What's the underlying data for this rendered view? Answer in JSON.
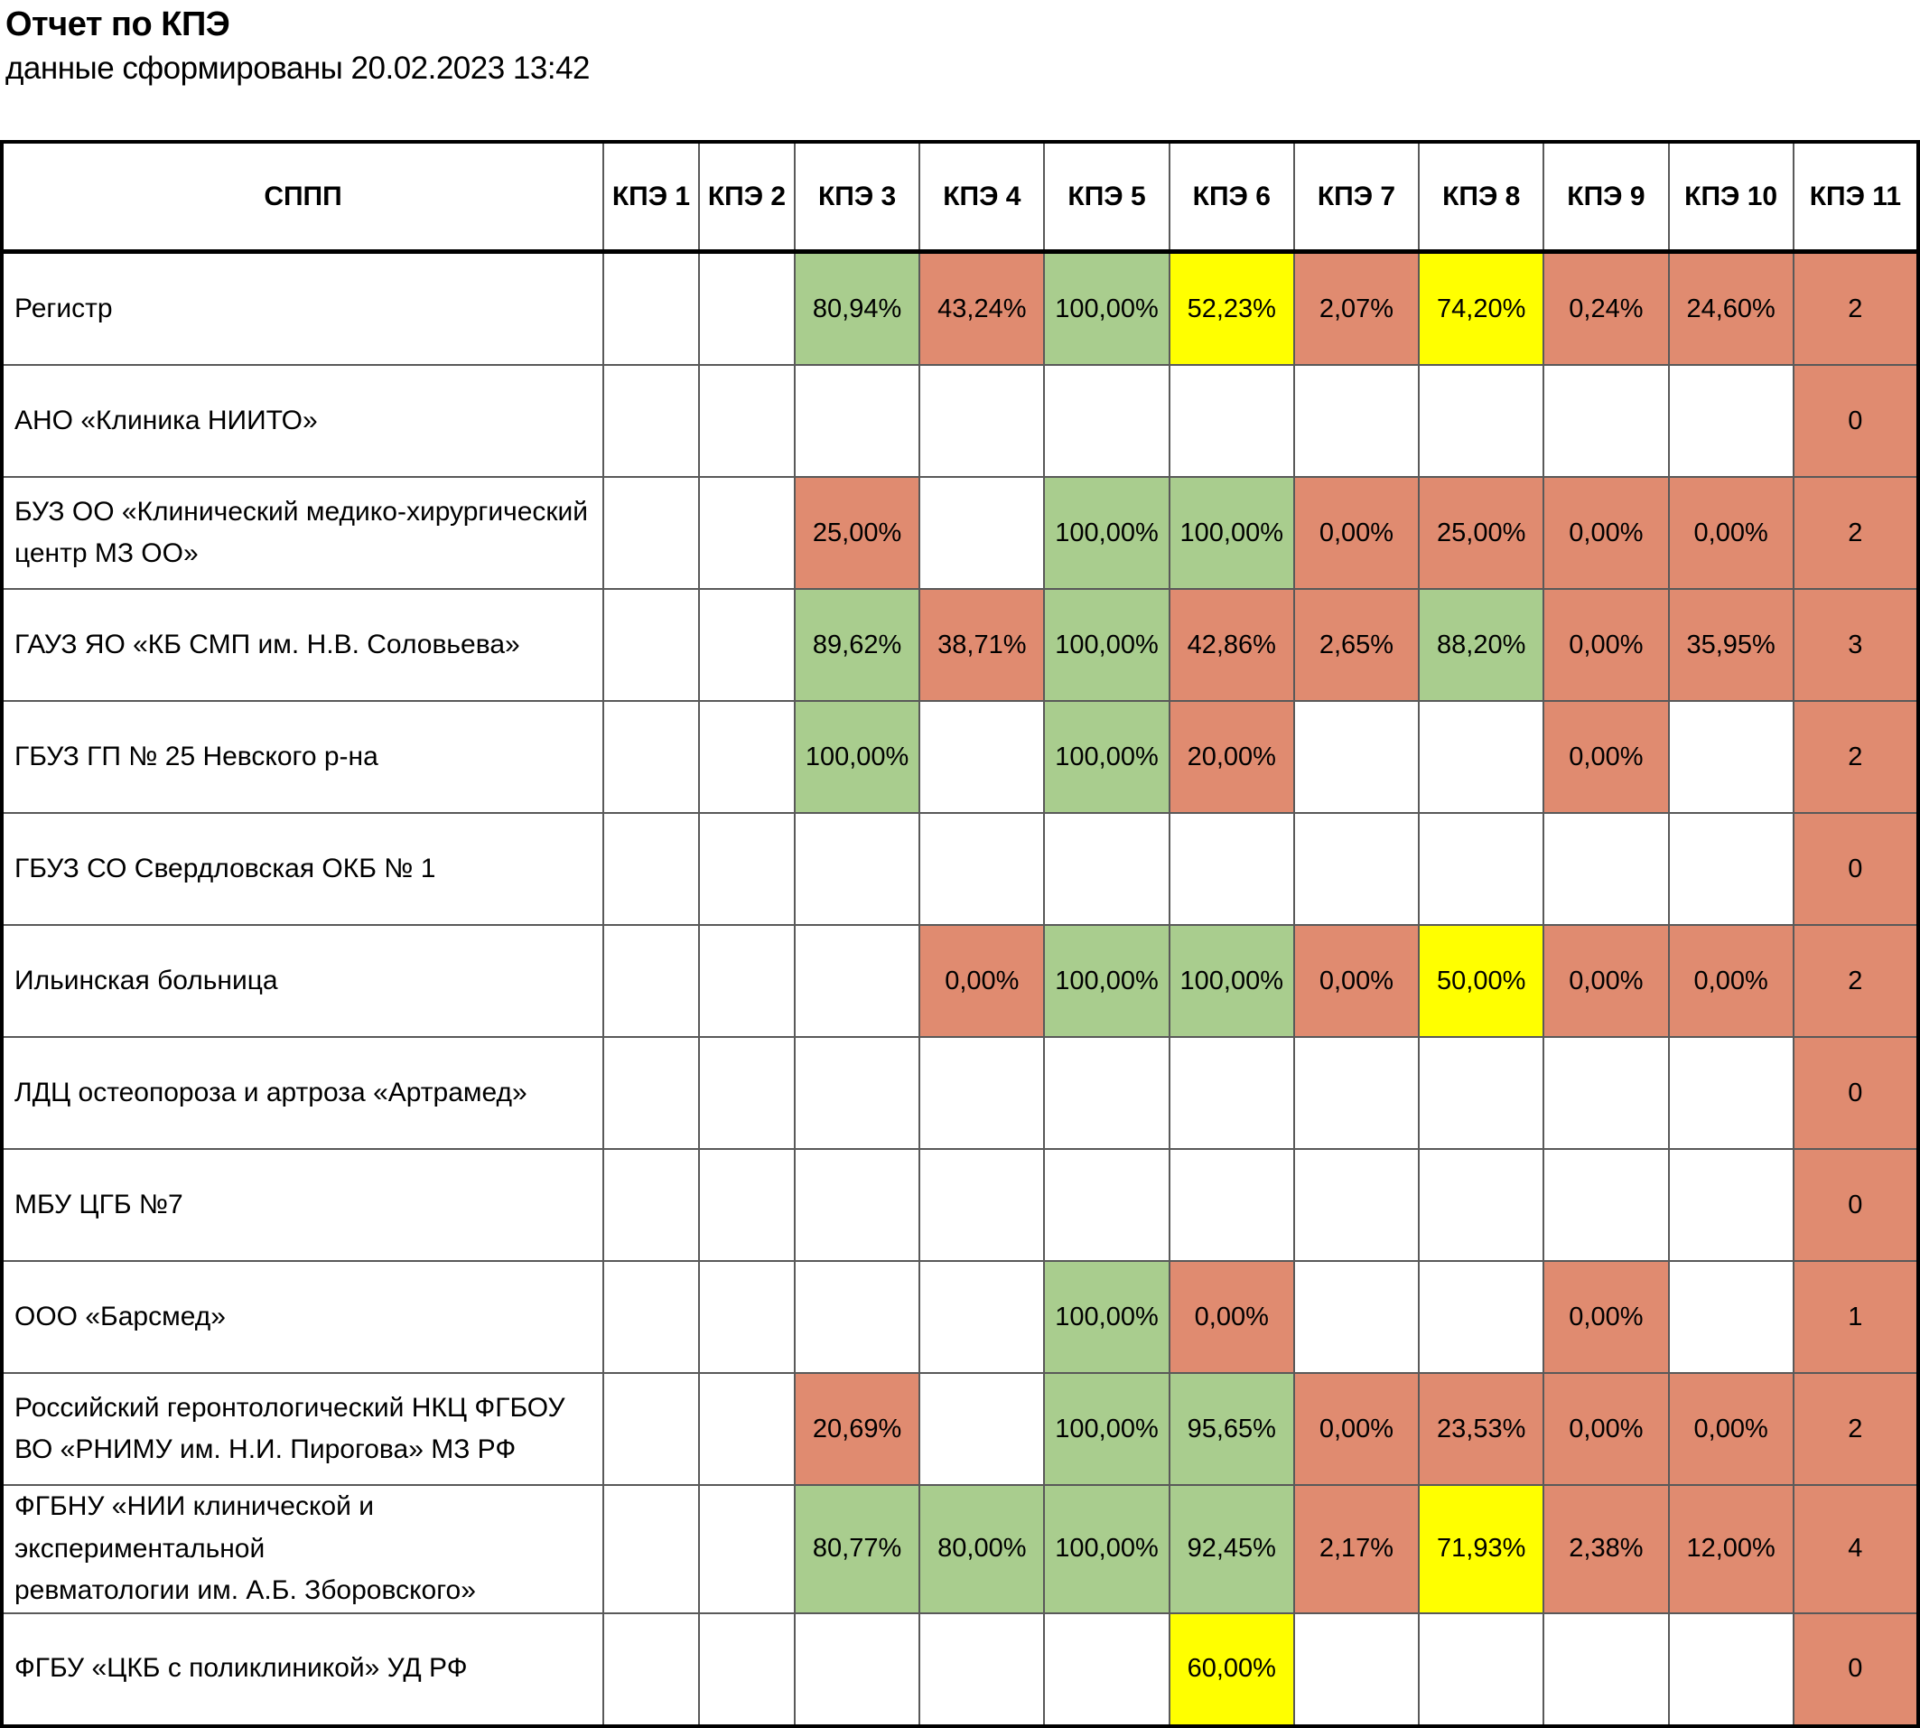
{
  "page": {
    "title": "Отчет по КПЭ",
    "subtitle": "данные сформированы 20.02.2023 13:42"
  },
  "colors": {
    "green": "#a9cd8e",
    "red": "#e08b70",
    "yellow": "#ffff00"
  },
  "chart_data": {
    "type": "table",
    "title": "Отчет по КПЭ",
    "subtitle": "данные сформированы 20.02.2023 13:42",
    "legend_note": "cell colors: green = good, yellow = medium, red = bad",
    "columns": [
      "СППП",
      "КПЭ 1",
      "КПЭ 2",
      "КПЭ 3",
      "КПЭ 4",
      "КПЭ 5",
      "КПЭ 6",
      "КПЭ 7",
      "КПЭ 8",
      "КПЭ 9",
      "КПЭ 10",
      "КПЭ 11"
    ],
    "rows": [
      {
        "name": "Регистр",
        "cells": [
          null,
          null,
          {
            "v": "80,94%",
            "c": "green"
          },
          {
            "v": "43,24%",
            "c": "red"
          },
          {
            "v": "100,00%",
            "c": "green"
          },
          {
            "v": "52,23%",
            "c": "yellow"
          },
          {
            "v": "2,07%",
            "c": "red"
          },
          {
            "v": "74,20%",
            "c": "yellow"
          },
          {
            "v": "0,24%",
            "c": "red"
          },
          {
            "v": "24,60%",
            "c": "red"
          },
          {
            "v": "2",
            "c": "red"
          }
        ]
      },
      {
        "name": "АНО «Клиника НИИТО»",
        "cells": [
          null,
          null,
          null,
          null,
          null,
          null,
          null,
          null,
          null,
          null,
          {
            "v": "0",
            "c": "red"
          }
        ]
      },
      {
        "name": "БУЗ ОО «Клинический медико-хирургический\nцентр МЗ ОО»",
        "cells": [
          null,
          null,
          {
            "v": "25,00%",
            "c": "red"
          },
          null,
          {
            "v": "100,00%",
            "c": "green"
          },
          {
            "v": "100,00%",
            "c": "green"
          },
          {
            "v": "0,00%",
            "c": "red"
          },
          {
            "v": "25,00%",
            "c": "red"
          },
          {
            "v": "0,00%",
            "c": "red"
          },
          {
            "v": "0,00%",
            "c": "red"
          },
          {
            "v": "2",
            "c": "red"
          }
        ]
      },
      {
        "name": "ГАУЗ ЯО «КБ СМП им. Н.В. Соловьева»",
        "cells": [
          null,
          null,
          {
            "v": "89,62%",
            "c": "green"
          },
          {
            "v": "38,71%",
            "c": "red"
          },
          {
            "v": "100,00%",
            "c": "green"
          },
          {
            "v": "42,86%",
            "c": "red"
          },
          {
            "v": "2,65%",
            "c": "red"
          },
          {
            "v": "88,20%",
            "c": "green"
          },
          {
            "v": "0,00%",
            "c": "red"
          },
          {
            "v": "35,95%",
            "c": "red"
          },
          {
            "v": "3",
            "c": "red"
          }
        ]
      },
      {
        "name": "ГБУЗ ГП № 25 Невского р-на",
        "cells": [
          null,
          null,
          {
            "v": "100,00%",
            "c": "green"
          },
          null,
          {
            "v": "100,00%",
            "c": "green"
          },
          {
            "v": "20,00%",
            "c": "red"
          },
          null,
          null,
          {
            "v": "0,00%",
            "c": "red"
          },
          null,
          {
            "v": "2",
            "c": "red"
          }
        ]
      },
      {
        "name": "ГБУЗ СО Свердловская ОКБ № 1",
        "cells": [
          null,
          null,
          null,
          null,
          null,
          null,
          null,
          null,
          null,
          null,
          {
            "v": "0",
            "c": "red"
          }
        ]
      },
      {
        "name": "Ильинская больница",
        "cells": [
          null,
          null,
          null,
          {
            "v": "0,00%",
            "c": "red"
          },
          {
            "v": "100,00%",
            "c": "green"
          },
          {
            "v": "100,00%",
            "c": "green"
          },
          {
            "v": "0,00%",
            "c": "red"
          },
          {
            "v": "50,00%",
            "c": "yellow"
          },
          {
            "v": "0,00%",
            "c": "red"
          },
          {
            "v": "0,00%",
            "c": "red"
          },
          {
            "v": "2",
            "c": "red"
          }
        ]
      },
      {
        "name": "ЛДЦ остеопороза и артроза «Артрамед»",
        "cells": [
          null,
          null,
          null,
          null,
          null,
          null,
          null,
          null,
          null,
          null,
          {
            "v": "0",
            "c": "red"
          }
        ]
      },
      {
        "name": "МБУ ЦГБ №7",
        "cells": [
          null,
          null,
          null,
          null,
          null,
          null,
          null,
          null,
          null,
          null,
          {
            "v": "0",
            "c": "red"
          }
        ]
      },
      {
        "name": "ООО «Барсмед»",
        "cells": [
          null,
          null,
          null,
          null,
          {
            "v": "100,00%",
            "c": "green"
          },
          {
            "v": "0,00%",
            "c": "red"
          },
          null,
          null,
          {
            "v": "0,00%",
            "c": "red"
          },
          null,
          {
            "v": "1",
            "c": "red"
          }
        ]
      },
      {
        "name": "Российский геронтологический НКЦ ФГБОУ\nВО «РНИМУ им. Н.И. Пирогова» МЗ РФ",
        "cells": [
          null,
          null,
          {
            "v": "20,69%",
            "c": "red"
          },
          null,
          {
            "v": "100,00%",
            "c": "green"
          },
          {
            "v": "95,65%",
            "c": "green"
          },
          {
            "v": "0,00%",
            "c": "red"
          },
          {
            "v": "23,53%",
            "c": "red"
          },
          {
            "v": "0,00%",
            "c": "red"
          },
          {
            "v": "0,00%",
            "c": "red"
          },
          {
            "v": "2",
            "c": "red"
          }
        ]
      },
      {
        "name": "ФГБНУ «НИИ клинической и экспериментальной\nревматологии им. А.Б. Зборовского»",
        "cells": [
          null,
          null,
          {
            "v": "80,77%",
            "c": "green"
          },
          {
            "v": "80,00%",
            "c": "green"
          },
          {
            "v": "100,00%",
            "c": "green"
          },
          {
            "v": "92,45%",
            "c": "green"
          },
          {
            "v": "2,17%",
            "c": "red"
          },
          {
            "v": "71,93%",
            "c": "yellow"
          },
          {
            "v": "2,38%",
            "c": "red"
          },
          {
            "v": "12,00%",
            "c": "red"
          },
          {
            "v": "4",
            "c": "red"
          }
        ]
      },
      {
        "name": "ФГБУ «ЦКБ с поликлиникой» УД РФ",
        "cells": [
          null,
          null,
          null,
          null,
          null,
          {
            "v": "60,00%",
            "c": "yellow"
          },
          null,
          null,
          null,
          null,
          {
            "v": "0",
            "c": "red"
          }
        ]
      }
    ]
  }
}
